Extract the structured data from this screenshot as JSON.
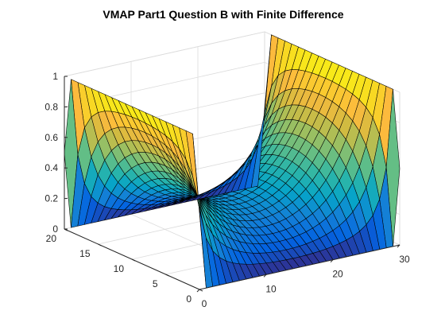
{
  "chart_data": {
    "type": "surface",
    "title": "VMAP Part1 Question B with Finite Difference",
    "xlabel": "",
    "ylabel": "",
    "zlabel": "",
    "x_range": [
      0,
      30
    ],
    "y_range": [
      0,
      20
    ],
    "z_range": [
      0,
      1
    ],
    "x_ticks": [
      0,
      10,
      20,
      30
    ],
    "y_ticks": [
      0,
      5,
      10,
      15,
      20
    ],
    "z_ticks": [
      0,
      0.2,
      0.4,
      0.6,
      0.8,
      1
    ],
    "x_tick_labels": [
      "0",
      "10",
      "20",
      "30"
    ],
    "y_tick_labels": [
      "0",
      "5",
      "10",
      "15",
      "20"
    ],
    "z_tick_labels": [
      "0",
      "0.2",
      "0.4",
      "0.6",
      "0.8",
      "1"
    ],
    "grid": true,
    "colormap": "parula",
    "grid_resolution": {
      "nx": 31,
      "ny": 21
    },
    "boundary_conditions": {
      "x_min_edge": 1,
      "x_max_edge": 1,
      "y_min_edge": 0,
      "y_max_edge": 0,
      "corner_value": 0.5
    }
  }
}
